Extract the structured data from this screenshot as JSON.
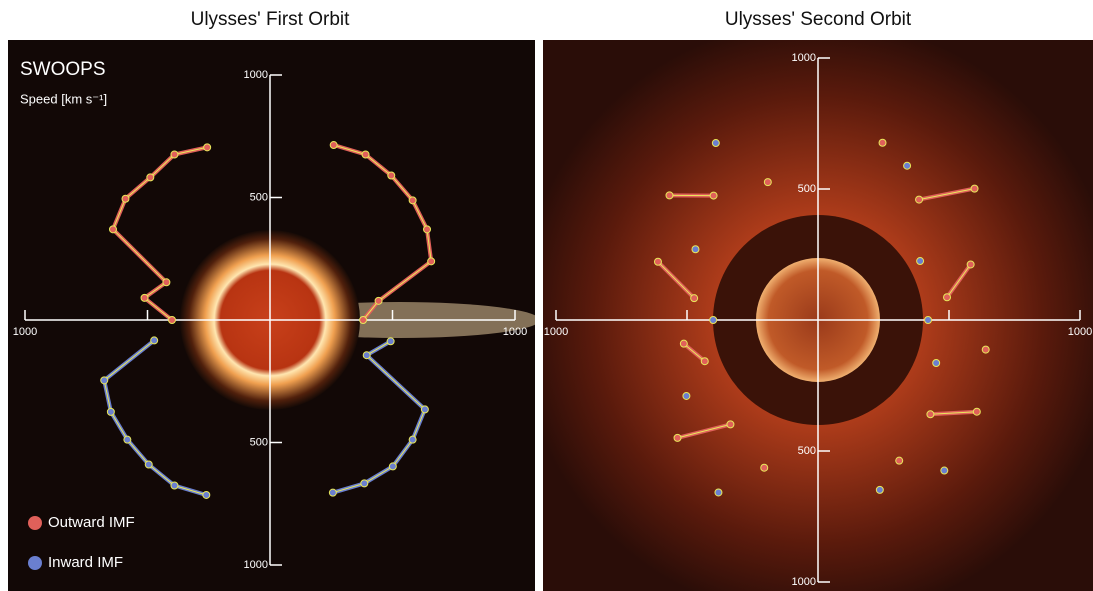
{
  "chart_data": [
    {
      "type": "polar",
      "title": "Ulysses' First Orbit",
      "instrument": "SWOOPS",
      "axis_label": "Speed [km s⁻¹]",
      "rlim": [
        0,
        1000
      ],
      "rticks": [
        500,
        1000
      ],
      "angles": [
        20,
        30,
        40,
        50,
        60,
        70,
        80,
        90,
        100,
        110,
        120,
        130,
        140,
        150,
        160,
        180,
        200,
        210,
        220,
        230,
        240,
        250,
        260,
        270,
        280,
        290,
        300,
        310,
        320,
        330,
        340
      ],
      "series": [
        {
          "name": "Outward IMF",
          "color": "#e0605a",
          "values": [
            760,
            780,
            770,
            760,
            740,
            700,
            450,
            380,
            null,
            null,
            null,
            null,
            null,
            null,
            null,
            null,
            null,
            null,
            null,
            null,
            null,
            null,
            null,
            400,
            520,
            450,
            740,
            770,
            760,
            780,
            750
          ]
        },
        {
          "name": "Inward IMF",
          "color": "#6a7fd0",
          "values": [
            null,
            null,
            null,
            null,
            null,
            null,
            null,
            null,
            500,
            420,
            730,
            760,
            780,
            770,
            750,
            null,
            760,
            780,
            770,
            760,
            750,
            720,
            480,
            null,
            null,
            null,
            null,
            null,
            null,
            null,
            null
          ]
        }
      ]
    },
    {
      "type": "polar",
      "title": "Ulysses' Second Orbit",
      "rlim": [
        0,
        1000
      ],
      "rticks": [
        500,
        1000
      ],
      "angles": [
        20,
        30,
        40,
        50,
        60,
        70,
        80,
        90,
        100,
        110,
        120,
        130,
        140,
        150,
        160,
        180,
        200,
        210,
        220,
        230,
        240,
        250,
        260,
        270,
        280,
        290,
        300,
        310,
        320,
        330,
        340
      ],
      "series": [
        {
          "color": "#e0605a",
          "values": [
            720,
            null,
            600,
            780,
            null,
            620,
            500,
            null,
            650,
            null,
            700,
            560,
            null,
            620,
            null,
            null,
            600,
            null,
            520,
            700,
            null,
            460,
            520,
            null,
            480,
            650,
            null,
            740,
            620,
            null,
            560
          ]
        },
        {
          "color": "#6a7fd0",
          "values": [
            null,
            680,
            null,
            null,
            450,
            null,
            null,
            420,
            null,
            480,
            null,
            null,
            750,
            null,
            690,
            null,
            null,
            760,
            null,
            null,
            580,
            null,
            null,
            400,
            null,
            null,
            540,
            null,
            null,
            780,
            null
          ]
        }
      ]
    }
  ]
}
